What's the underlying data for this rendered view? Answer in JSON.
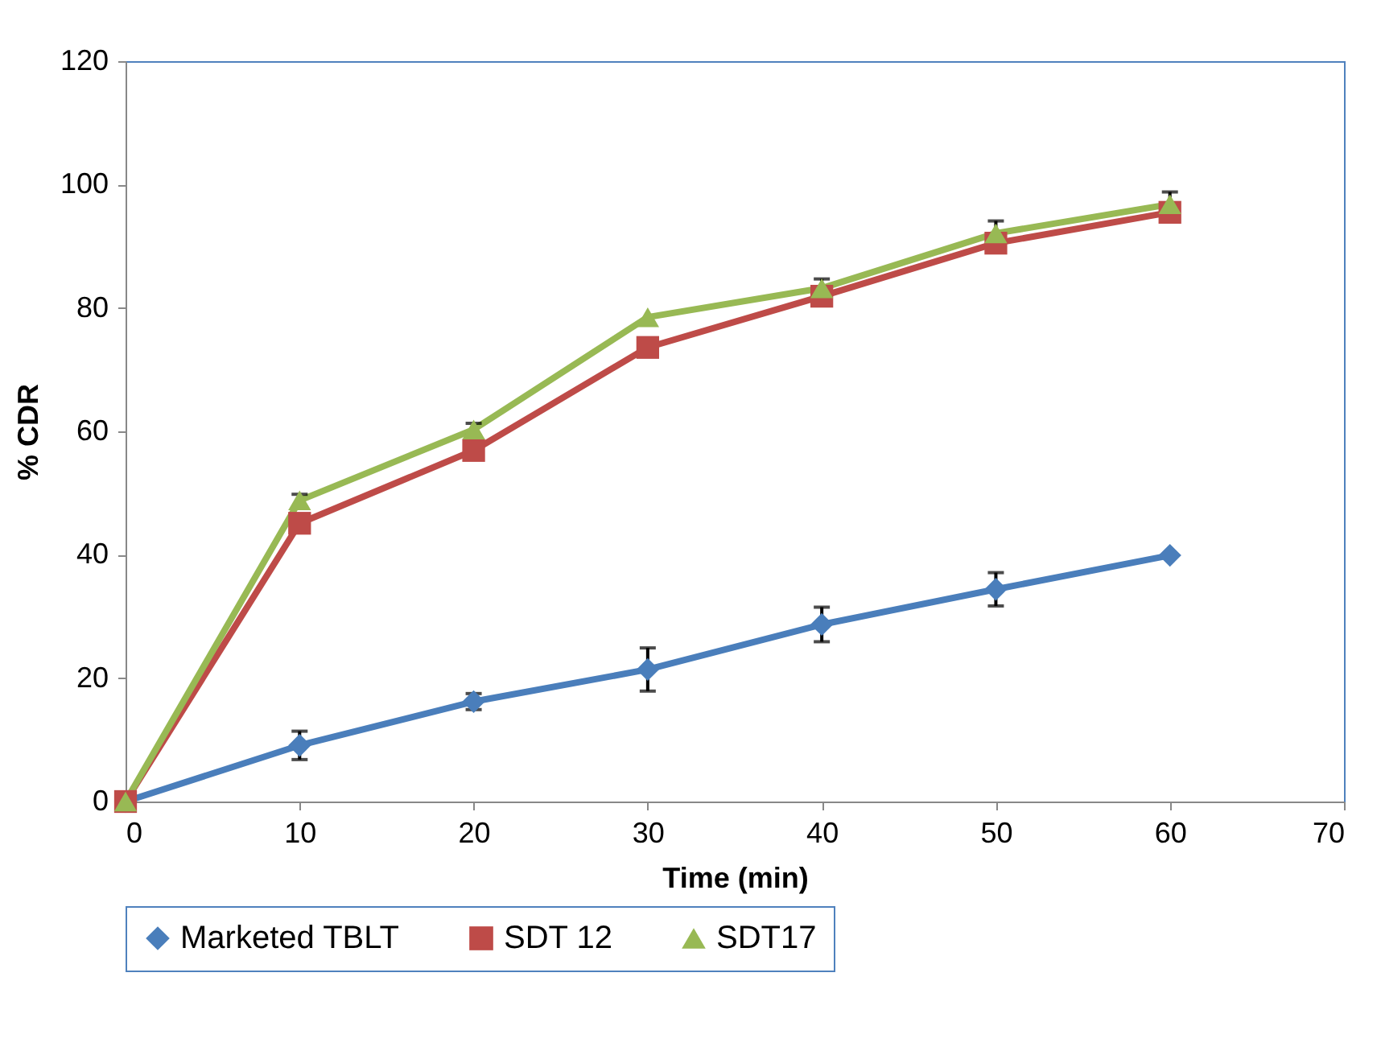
{
  "chart_data": {
    "type": "line",
    "xlabel": "Time (min)",
    "ylabel": "% CDR",
    "x": [
      0,
      10,
      20,
      30,
      40,
      50,
      60
    ],
    "xlim": [
      0,
      70
    ],
    "xticks": [
      0,
      10,
      20,
      30,
      40,
      50,
      60,
      70
    ],
    "ylim": [
      0,
      120
    ],
    "yticks": [
      0,
      20,
      40,
      60,
      80,
      100,
      120
    ],
    "grid": false,
    "legend": "bottom",
    "line_style": "solid",
    "series": [
      {
        "name": "Marketed TBLT",
        "color": "#4a7ebb",
        "marker": "diamond",
        "values": [
          0,
          9.1,
          16.2,
          21.4,
          28.7,
          34.4,
          39.9
        ],
        "errors": [
          null,
          2.3,
          1.3,
          3.5,
          2.8,
          2.7,
          null
        ]
      },
      {
        "name": "SDT 12",
        "color": "#be4b48",
        "marker": "square",
        "values": [
          0,
          45.1,
          56.9,
          73.6,
          81.9,
          90.5,
          95.5
        ]
      },
      {
        "name": "SDT17",
        "color": "#98b954",
        "marker": "triangle",
        "values": [
          0,
          48.8,
          60.3,
          78.5,
          83.2,
          92.1,
          96.8
        ],
        "errors": [
          null,
          1,
          1,
          null,
          1.5,
          2,
          2
        ]
      }
    ]
  }
}
